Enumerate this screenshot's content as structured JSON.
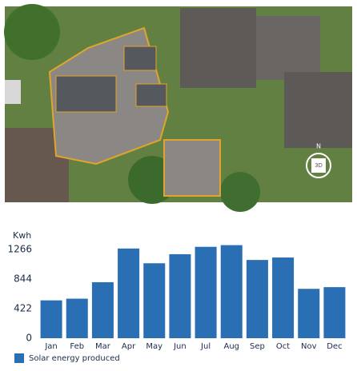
{
  "map": {
    "button_3d": "3D",
    "compass": "N"
  },
  "chart_data": {
    "type": "bar",
    "ylabel": "Kwh",
    "categories": [
      "Jan",
      "Feb",
      "Mar",
      "Apr",
      "May",
      "Jun",
      "Jul",
      "Aug",
      "Sep",
      "Oct",
      "Nov",
      "Dec"
    ],
    "series": [
      {
        "name": "Solar energy produced",
        "color": "#2a6fb3",
        "values": [
          539,
          563,
          797,
          1277,
          1067,
          1196,
          1301,
          1325,
          1114,
          1149,
          703,
          727
        ]
      }
    ],
    "ylim": [
      0,
      1400
    ],
    "yticks": [
      0,
      422,
      844,
      1266
    ],
    "grid": false,
    "legend": "bottom-left"
  }
}
